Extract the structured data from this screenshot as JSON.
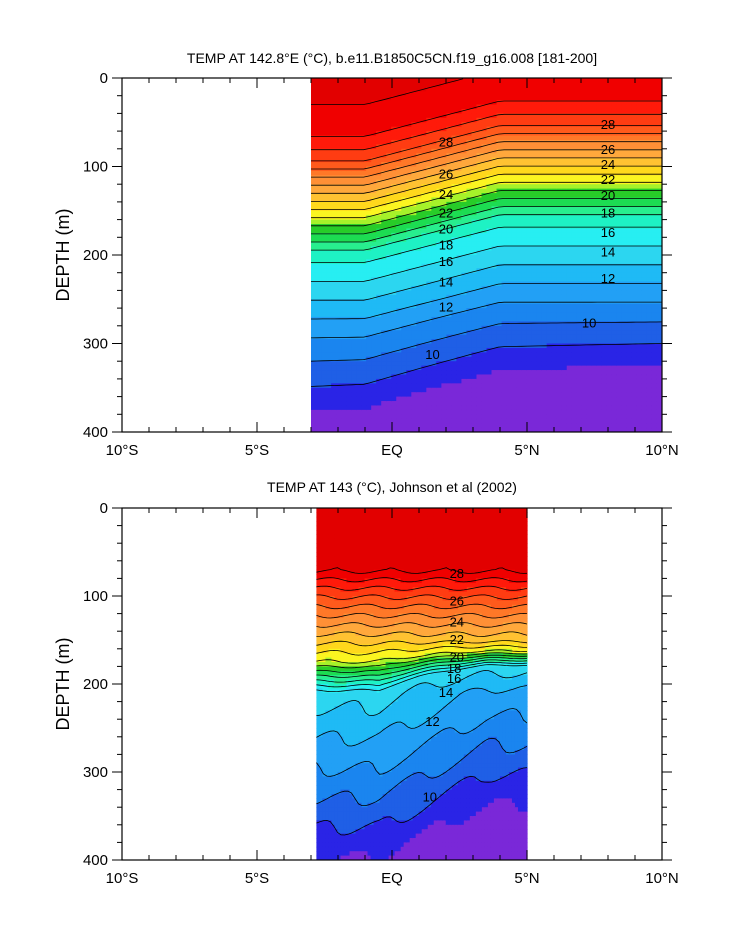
{
  "chart_data": [
    {
      "type": "contour",
      "title": "TEMP AT 142.8°E (°C), b.e11.B1850C5CN.f19_g16.008 [181-200]",
      "ylabel": "DEPTH (m)",
      "xlabel": "",
      "xlim": [
        -10,
        10
      ],
      "ylim": [
        400,
        0
      ],
      "x_ticks": [
        -10,
        -5,
        0,
        5,
        10
      ],
      "x_tick_labels": [
        "10°S",
        "5°S",
        "EQ",
        "5°N",
        "10°N"
      ],
      "y_ticks": [
        0,
        100,
        200,
        300,
        400
      ],
      "y_tick_labels": [
        "0",
        "100",
        "200",
        "300",
        "400"
      ],
      "data_extent_x": [
        -3,
        10
      ],
      "contour_interval": 1,
      "contour_labels": [
        {
          "text": "28",
          "x": 2,
          "y": 72
        },
        {
          "text": "28",
          "x": 8,
          "y": 52
        },
        {
          "text": "26",
          "x": 2,
          "y": 108
        },
        {
          "text": "26",
          "x": 8,
          "y": 80
        },
        {
          "text": "24",
          "x": 2,
          "y": 131
        },
        {
          "text": "24",
          "x": 8,
          "y": 97
        },
        {
          "text": "22",
          "x": 2,
          "y": 152
        },
        {
          "text": "22",
          "x": 8,
          "y": 114
        },
        {
          "text": "20",
          "x": 2,
          "y": 170
        },
        {
          "text": "20",
          "x": 8,
          "y": 132
        },
        {
          "text": "18",
          "x": 2,
          "y": 188
        },
        {
          "text": "18",
          "x": 8,
          "y": 152
        },
        {
          "text": "16",
          "x": 2,
          "y": 207
        },
        {
          "text": "16",
          "x": 8,
          "y": 174
        },
        {
          "text": "14",
          "x": 2,
          "y": 230
        },
        {
          "text": "14",
          "x": 8,
          "y": 196
        },
        {
          "text": "12",
          "x": 2,
          "y": 258
        },
        {
          "text": "12",
          "x": 8,
          "y": 226
        },
        {
          "text": "10",
          "x": 1.5,
          "y": 312
        },
        {
          "text": "10",
          "x": 7.3,
          "y": 276
        }
      ]
    },
    {
      "type": "contour",
      "title": "TEMP AT 143 (°C), Johnson et al (2002)",
      "ylabel": "DEPTH (m)",
      "xlabel": "",
      "xlim": [
        -10,
        10
      ],
      "ylim": [
        400,
        0
      ],
      "x_ticks": [
        -10,
        -5,
        0,
        5,
        10
      ],
      "x_tick_labels": [
        "10°S",
        "5°S",
        "EQ",
        "5°N",
        "10°N"
      ],
      "y_ticks": [
        0,
        100,
        200,
        300,
        400
      ],
      "y_tick_labels": [
        "0",
        "100",
        "200",
        "300",
        "400"
      ],
      "data_extent_x": [
        -2.8,
        5
      ],
      "contour_interval": 1,
      "contour_labels": [
        {
          "text": "28",
          "x": 2.4,
          "y": 74
        },
        {
          "text": "26",
          "x": 2.4,
          "y": 105
        },
        {
          "text": "24",
          "x": 2.4,
          "y": 129
        },
        {
          "text": "22",
          "x": 2.4,
          "y": 149
        },
        {
          "text": "20",
          "x": 2.4,
          "y": 169
        },
        {
          "text": "18",
          "x": 2.3,
          "y": 182
        },
        {
          "text": "16",
          "x": 2.3,
          "y": 193
        },
        {
          "text": "14",
          "x": 2.0,
          "y": 209
        },
        {
          "text": "12",
          "x": 1.5,
          "y": 242
        },
        {
          "text": "10",
          "x": 1.4,
          "y": 328
        }
      ]
    }
  ],
  "colors": {
    "levels": [
      "#7a28d8",
      "#2a24e6",
      "#1f5fe6",
      "#1a85ef",
      "#22a0f5",
      "#1fbaf5",
      "#2cd6f0",
      "#27eef2",
      "#1ef2c4",
      "#28ee8e",
      "#1ddc52",
      "#28cc28",
      "#a6f22a",
      "#fbf521",
      "#ffd81c",
      "#ffc232",
      "#ffa83c",
      "#ff9036",
      "#ff7828",
      "#ff5a1c",
      "#ff3c12",
      "#ff1a0a",
      "#f00000",
      "#e20000"
    ]
  }
}
